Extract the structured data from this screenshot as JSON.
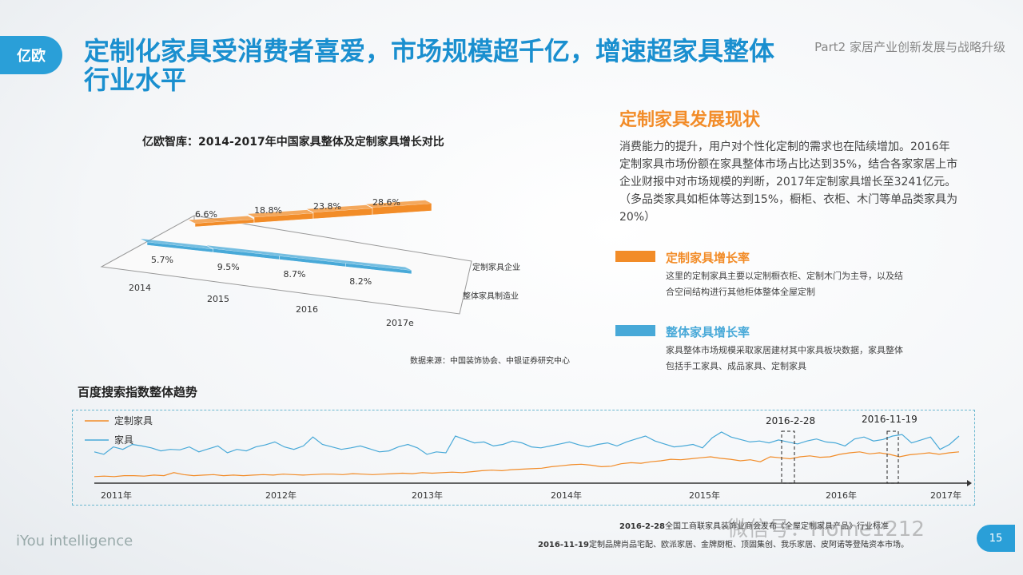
{
  "header": {
    "logo": "亿欧",
    "title_line1": "定制化家具受消费者喜爱，市场规模超千亿，增速超家具整体",
    "title_line2": "行业水平",
    "part": "Part2 家居产业创新发展与战略升级"
  },
  "side": {
    "section_title": "定制家具发展现状",
    "body": "消费能力的提升，用户对个性化定制的需求也在陆续增加。2016年定制家具市场份额在家具整体市场占比达到35%，结合各家家居上市企业财报中对市场规模的判断，2017年定制家具增长至3241亿元。（多品类家具如柜体等达到15%，橱柜、衣柜、木门等单品类家具为20%）",
    "legend": [
      {
        "title": "定制家具增长率",
        "desc": "这里的定制家具主要以定制橱衣柜、定制木门为主导，以及结合空间结构进行其他柜体整体全屋定制",
        "color": "#f28c28"
      },
      {
        "title": "整体家具增长率",
        "desc": "家具整体市场规模采取家居建材其中家具板块数据，家具整体包括手工家具、成品家具、定制家具",
        "color": "#48a9d8"
      }
    ]
  },
  "chart_data": [
    {
      "type": "bar",
      "title": "亿欧智库：2014-2017年中国家具整体及定制家具增长对比",
      "categories": [
        "2014",
        "2015",
        "2016",
        "2017e"
      ],
      "series": [
        {
          "name": "定制家具企业",
          "values": [
            6.6,
            18.8,
            23.8,
            28.6
          ],
          "labels": [
            "6.6%",
            "18.8%",
            "23.8%",
            "28.6%"
          ],
          "color": "#f28c28"
        },
        {
          "name": "整体家具制造业",
          "values": [
            5.7,
            9.5,
            8.7,
            8.2
          ],
          "labels": [
            "5.7%",
            "9.5%",
            "8.7%",
            "8.2%"
          ],
          "color": "#48a9d8"
        }
      ],
      "unit": "%",
      "source": "数据来源：中国装饰协会、中银证券研究中心"
    },
    {
      "type": "line",
      "title": "百度搜索指数整体趋势",
      "x_ticks": [
        "2011年",
        "2012年",
        "2013年",
        "2014年",
        "2015年",
        "2016年",
        "2017年"
      ],
      "series": [
        {
          "name": "定制家具",
          "color": "#f28c28",
          "values": [
            10,
            11,
            10,
            12,
            12,
            11,
            13,
            12,
            18,
            14,
            12,
            13,
            14,
            12,
            13,
            12,
            13,
            14,
            13,
            15,
            14,
            13,
            14,
            15,
            15,
            14,
            16,
            15,
            14,
            15,
            16,
            17,
            16,
            18,
            17,
            18,
            19,
            18,
            20,
            22,
            23,
            22,
            24,
            25,
            26,
            27,
            30,
            32,
            34,
            35,
            33,
            30,
            31,
            36,
            38,
            37,
            40,
            42,
            45,
            44,
            46,
            48,
            50,
            47,
            45,
            42,
            44,
            40,
            50,
            48,
            46,
            50,
            52,
            49,
            50,
            55,
            58,
            60,
            56,
            58,
            55,
            50,
            54,
            56,
            58,
            55,
            58,
            60
          ]
        },
        {
          "name": "家具",
          "color": "#48a9d8",
          "values": [
            60,
            55,
            70,
            65,
            75,
            72,
            68,
            62,
            65,
            64,
            70,
            60,
            66,
            72,
            58,
            65,
            62,
            70,
            74,
            80,
            70,
            65,
            72,
            90,
            75,
            70,
            65,
            68,
            72,
            66,
            60,
            62,
            70,
            75,
            68,
            55,
            60,
            58,
            92,
            85,
            78,
            80,
            72,
            75,
            82,
            78,
            70,
            68,
            72,
            76,
            80,
            74,
            70,
            75,
            78,
            72,
            80,
            86,
            92,
            82,
            76,
            70,
            72,
            75,
            68,
            88,
            100,
            90,
            85,
            80,
            82,
            78,
            84,
            80,
            76,
            82,
            86,
            80,
            78,
            72,
            86,
            90,
            82,
            85,
            92,
            95,
            78,
            84,
            90,
            65,
            75,
            92
          ]
        }
      ],
      "annotations": [
        "2016-2-28",
        "2016-11-19"
      ]
    }
  ],
  "notes": [
    {
      "date": "2016-2-28",
      "text": "全国工商联家具装饰业商会发布《全屋定制家具产品》行业标准"
    },
    {
      "date": "2016-11-19",
      "text": "定制品牌尚品宅配、欧派家居、金牌厨柜、顶固集创、我乐家居、皮阿诺等登陆资本市场。"
    }
  ],
  "watermark": "微信号：Home1212",
  "footer": {
    "brand": "iYou intelligence",
    "page": "15"
  }
}
